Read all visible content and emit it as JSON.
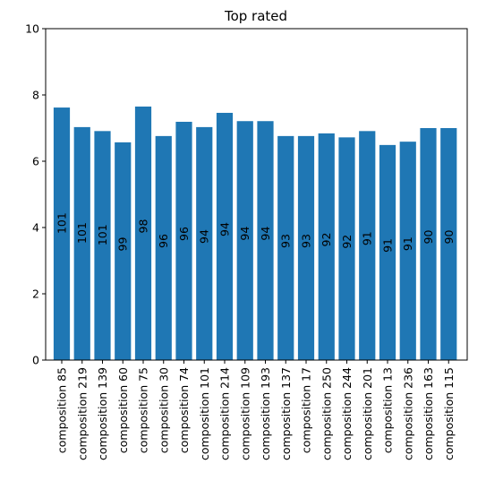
{
  "chart_data": {
    "type": "bar",
    "title": "Top rated",
    "xlabel": "",
    "ylabel": "",
    "ylim": [
      0,
      10
    ],
    "yticks": [
      0,
      2,
      4,
      6,
      8,
      10
    ],
    "grid": false,
    "bar_color": "#1f77b4",
    "categories": [
      "composition 85",
      "composition 219",
      "composition 139",
      "composition 60",
      "composition 75",
      "composition 30",
      "composition 74",
      "composition 101",
      "composition 214",
      "composition 109",
      "composition 193",
      "composition 137",
      "composition 17",
      "composition 250",
      "composition 244",
      "composition 201",
      "composition 13",
      "composition 236",
      "composition 163",
      "composition 115"
    ],
    "values": [
      7.62,
      7.03,
      6.91,
      6.57,
      7.65,
      6.76,
      7.19,
      7.03,
      7.46,
      7.21,
      7.21,
      6.76,
      6.76,
      6.84,
      6.72,
      6.91,
      6.49,
      6.59,
      7.0,
      7.0
    ],
    "bar_labels": [
      "101",
      "101",
      "101",
      "99",
      "98",
      "96",
      "96",
      "94",
      "94",
      "94",
      "94",
      "93",
      "93",
      "92",
      "92",
      "91",
      "91",
      "91",
      "90",
      "90"
    ]
  }
}
